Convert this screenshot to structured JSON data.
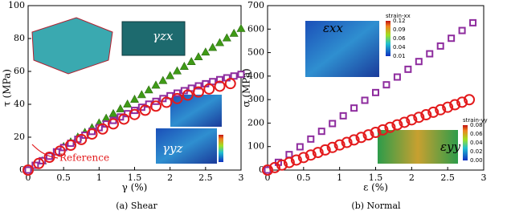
{
  "chart_data": [
    {
      "type": "scatter",
      "caption": "(a) Shear",
      "xlabel": "γ (%)",
      "ylabel": "τ (MPa)",
      "xlim": [
        0,
        3
      ],
      "ylim": [
        0,
        100
      ],
      "xticks": [
        0,
        0.5,
        1,
        1.5,
        2,
        2.5,
        3
      ],
      "yticks": [
        0,
        20,
        40,
        60,
        80,
        100
      ],
      "annotations": [
        "γzx",
        "γyz"
      ],
      "series": [
        {
          "color": "#3f9a16",
          "marker": "triangle",
          "x": [
            0,
            0.1,
            0.2,
            0.3,
            0.4,
            0.5,
            0.6,
            0.7,
            0.8,
            0.9,
            1,
            1.1,
            1.2,
            1.3,
            1.4,
            1.5,
            1.6,
            1.7,
            1.8,
            1.9,
            2,
            2.1,
            2.2,
            2.3,
            2.4,
            2.5,
            2.6,
            2.7,
            2.8,
            2.9,
            3
          ],
          "values": [
            0,
            2.9,
            5.7,
            8.6,
            11.5,
            14.4,
            17.2,
            20.1,
            23,
            25.8,
            28.7,
            31.6,
            34.4,
            37.3,
            40.2,
            43.1,
            45.9,
            48.8,
            51.7,
            54.5,
            57.4,
            60.3,
            63.1,
            66,
            68.9,
            71.8,
            74.6,
            77.5,
            80.4,
            83.2,
            86.1
          ]
        },
        {
          "color": "#8e2c9e",
          "marker": "square",
          "x": [
            0,
            0.1,
            0.2,
            0.3,
            0.4,
            0.5,
            0.6,
            0.7,
            0.8,
            0.9,
            1,
            1.1,
            1.2,
            1.3,
            1.4,
            1.5,
            1.6,
            1.7,
            1.8,
            1.9,
            2,
            2.1,
            2.2,
            2.3,
            2.4,
            2.5,
            2.6,
            2.7,
            2.8,
            2.9,
            3
          ],
          "values": [
            0,
            2.9,
            5.7,
            8.4,
            11.1,
            13.7,
            16.3,
            18.7,
            21.2,
            23.5,
            25.8,
            28,
            30.2,
            32.3,
            34.3,
            36.3,
            38.2,
            40.1,
            41.8,
            43.5,
            45.2,
            46.8,
            48.3,
            49.8,
            51.2,
            52.5,
            53.8,
            55,
            56.1,
            57.2,
            58.2
          ]
        },
        {
          "name": "Reference",
          "color": "#e31a1c",
          "marker": "circle",
          "x": [
            0,
            0.15,
            0.3,
            0.45,
            0.6,
            0.75,
            0.9,
            1.05,
            1.2,
            1.35,
            1.5,
            1.65,
            1.8,
            1.95,
            2.1,
            2.25,
            2.4,
            2.55,
            2.7,
            2.85
          ],
          "values": [
            0,
            4,
            7.8,
            11.5,
            15.1,
            18.6,
            21.9,
            25,
            28.1,
            31,
            33.8,
            36.4,
            38.9,
            41.2,
            43.5,
            45.6,
            47.5,
            49.3,
            51,
            52.6
          ]
        }
      ]
    },
    {
      "type": "scatter",
      "caption": "(b) Normal",
      "xlabel": "ε (%)",
      "ylabel": "σ (MPa)",
      "xlim": [
        0,
        3
      ],
      "ylim": [
        0,
        700
      ],
      "xticks": [
        0,
        0.5,
        1,
        1.5,
        2,
        2.5,
        3
      ],
      "yticks": [
        0,
        100,
        200,
        300,
        400,
        500,
        600,
        700
      ],
      "annotations": [
        "εxx",
        "εyy"
      ],
      "colorbars": [
        {
          "title": "strain-xx",
          "ticks": [
            "0.12",
            "0.09",
            "0.06",
            "0.04",
            "0.01"
          ]
        },
        {
          "title": "strain-yy",
          "ticks": [
            "0.08",
            "0.06",
            "0.04",
            "0.02",
            "0.00"
          ]
        }
      ],
      "series": [
        {
          "color": "#8e2c9e",
          "marker": "square",
          "x": [
            0,
            0.15,
            0.3,
            0.45,
            0.6,
            0.75,
            0.9,
            1.05,
            1.2,
            1.35,
            1.5,
            1.65,
            1.8,
            1.95,
            2.1,
            2.25,
            2.4,
            2.55,
            2.7,
            2.85
          ],
          "values": [
            0,
            33,
            66,
            99,
            132,
            165,
            198,
            231,
            264,
            297,
            330,
            363,
            396,
            429,
            462,
            495,
            528,
            561,
            594,
            627
          ]
        },
        {
          "color": "#e31a1c",
          "marker": "circle",
          "x": [
            0,
            0.1,
            0.2,
            0.3,
            0.4,
            0.5,
            0.6,
            0.7,
            0.8,
            0.9,
            1,
            1.1,
            1.2,
            1.3,
            1.4,
            1.5,
            1.6,
            1.7,
            1.8,
            1.9,
            2,
            2.1,
            2.2,
            2.3,
            2.4,
            2.5,
            2.6,
            2.7,
            2.8
          ],
          "values": [
            0,
            10.7,
            21.4,
            32.1,
            42.8,
            53.5,
            64.2,
            74.9,
            85.6,
            96.3,
            107,
            117.7,
            128.4,
            139.1,
            149.8,
            160.5,
            171.2,
            181.9,
            192.6,
            203.3,
            214,
            224.7,
            235.4,
            246.1,
            256.8,
            267.5,
            278.2,
            288.9,
            299.6
          ]
        }
      ]
    }
  ]
}
